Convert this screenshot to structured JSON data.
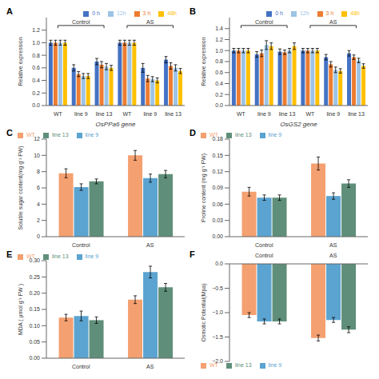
{
  "chart_data": [
    {
      "type": "bar",
      "title": "A",
      "xlabel": "OsPPa6 gene",
      "ylabel": "Relative expression",
      "categories": [
        "WT",
        "line 9",
        "line 13",
        "WT",
        "line 9",
        "line 13"
      ],
      "annotations": [
        "Control",
        "AS"
      ],
      "series": [
        {
          "name": "0 h",
          "color": "#4472C4",
          "values": [
            1.0,
            0.6,
            0.7,
            1.0,
            0.6,
            0.73
          ],
          "errors": [
            0.04,
            0.05,
            0.05,
            0.04,
            0.07,
            0.05
          ]
        },
        {
          "name": "3 h",
          "color": "#ED7D31",
          "values": [
            1.0,
            0.5,
            0.65,
            1.0,
            0.43,
            0.63
          ],
          "errors": [
            0.04,
            0.04,
            0.05,
            0.04,
            0.05,
            0.05
          ]
        },
        {
          "name": "12h",
          "color": "#9DC3E6",
          "values": [
            1.0,
            0.47,
            0.62,
            1.0,
            0.42,
            0.6
          ],
          "errors": [
            0.04,
            0.04,
            0.05,
            0.04,
            0.04,
            0.05
          ]
        },
        {
          "name": "48h",
          "color": "#FFC000",
          "values": [
            1.0,
            0.47,
            0.6,
            1.0,
            0.4,
            0.55
          ],
          "errors": [
            0.04,
            0.04,
            0.04,
            0.04,
            0.04,
            0.04
          ]
        }
      ],
      "ylim": [
        0.0,
        1.4
      ],
      "yticks": [
        {
          "value": 0.0,
          "label": "0.0"
        },
        0.2,
        0.4,
        0.6,
        0.8,
        {
          "value": 1.0,
          "label": "1.0"
        },
        1.2
      ],
      "legend": "upper right"
    },
    {
      "type": "bar",
      "title": "B",
      "xlabel": "OsGS2 gene",
      "ylabel": "Relative expression",
      "categories": [
        "WT",
        "line 9",
        "line 13",
        "WT",
        "line 9",
        "line 13"
      ],
      "annotations": [
        "Control",
        "AS"
      ],
      "series": [
        {
          "name": "0 h",
          "color": "#4472C4",
          "values": [
            1.0,
            0.93,
            0.98,
            1.0,
            0.88,
            0.95
          ],
          "errors": [
            0.04,
            0.05,
            0.05,
            0.04,
            0.05,
            0.05
          ]
        },
        {
          "name": "3 h",
          "color": "#ED7D31",
          "values": [
            1.0,
            0.95,
            0.97,
            1.0,
            0.75,
            0.88
          ],
          "errors": [
            0.04,
            0.06,
            0.04,
            0.04,
            0.05,
            0.04
          ]
        },
        {
          "name": "12h",
          "color": "#9DC3E6",
          "values": [
            1.0,
            1.1,
            1.0,
            1.0,
            0.65,
            0.82
          ],
          "errors": [
            0.04,
            0.08,
            0.04,
            0.04,
            0.05,
            0.04
          ]
        },
        {
          "name": "48h",
          "color": "#FFC000",
          "values": [
            1.0,
            1.08,
            1.08,
            1.0,
            0.63,
            0.72
          ],
          "errors": [
            0.04,
            0.06,
            0.06,
            0.04,
            0.04,
            0.04
          ]
        }
      ],
      "ylim": [
        0.0,
        1.6
      ],
      "yticks": [
        {
          "value": 0.0,
          "label": "0.0"
        },
        0.2,
        0.4,
        0.6,
        0.8,
        {
          "value": 1.0,
          "label": "1.0"
        },
        1.2,
        1.4
      ],
      "legend": "upper right"
    },
    {
      "type": "bar",
      "title": "C",
      "ylabel": "Soluble sugar content(mg g⁻¹ FW)",
      "categories": [
        "Control",
        "AS"
      ],
      "series": [
        {
          "name": "WT",
          "color": "#F4A070",
          "values": [
            7.8,
            10.0
          ],
          "errors": [
            0.55,
            0.6
          ]
        },
        {
          "name": "line 9",
          "color": "#5BA3D0",
          "values": [
            6.1,
            7.2
          ],
          "errors": [
            0.4,
            0.5
          ]
        },
        {
          "name": "line 13",
          "color": "#5F8F7A",
          "values": [
            6.8,
            7.7
          ],
          "errors": [
            0.3,
            0.45
          ]
        }
      ],
      "ylim": [
        0,
        12
      ],
      "yticks": [
        0,
        2,
        4,
        6,
        8,
        10,
        12
      ],
      "legend": "upper left"
    },
    {
      "type": "bar",
      "title": "D",
      "ylabel": "Proline content (mg g⁻¹ FW)",
      "categories": [
        "Control",
        "AS"
      ],
      "series": [
        {
          "name": "WT",
          "color": "#F4A070",
          "values": [
            0.083,
            0.135
          ],
          "errors": [
            0.008,
            0.012
          ]
        },
        {
          "name": "line 9",
          "color": "#5BA3D0",
          "values": [
            0.072,
            0.075
          ],
          "errors": [
            0.005,
            0.006
          ]
        },
        {
          "name": "line 13",
          "color": "#5F8F7A",
          "values": [
            0.072,
            0.098
          ],
          "errors": [
            0.005,
            0.007
          ]
        }
      ],
      "ylim": [
        0.0,
        0.18
      ],
      "yticks": [
        {
          "value": 0.0,
          "label": "0.00"
        },
        0.03,
        0.06,
        0.09,
        0.12,
        0.15,
        0.18
      ],
      "legend": "upper left"
    },
    {
      "type": "bar",
      "title": "E",
      "ylabel": "MDA ( μmol g⁻¹ FW )",
      "categories": [
        "Control",
        "AS"
      ],
      "series": [
        {
          "name": "WT",
          "color": "#F4A070",
          "values": [
            0.125,
            0.18
          ],
          "errors": [
            0.01,
            0.012
          ]
        },
        {
          "name": "line 9",
          "color": "#5BA3D0",
          "values": [
            0.13,
            0.265
          ],
          "errors": [
            0.015,
            0.018
          ]
        },
        {
          "name": "line 13",
          "color": "#5F8F7A",
          "values": [
            0.117,
            0.218
          ],
          "errors": [
            0.01,
            0.012
          ]
        }
      ],
      "ylim": [
        0.0,
        0.3
      ],
      "yticks": [
        {
          "value": 0.0,
          "label": "0.00"
        },
        0.05,
        {
          "value": 0.1,
          "label": "0.10"
        },
        0.15,
        {
          "value": 0.2,
          "label": "0.20"
        },
        0.25,
        {
          "value": 0.3,
          "label": "0.30"
        }
      ],
      "legend": "upper left"
    },
    {
      "type": "bar",
      "title": "F",
      "ylabel": "Osmotic Potential(Mpa)",
      "categories": [
        "Control",
        "AS"
      ],
      "series": [
        {
          "name": "WT",
          "color": "#F4A070",
          "values": [
            -1.05,
            -1.52
          ],
          "errors": [
            0.05,
            0.06
          ]
        },
        {
          "name": "line 9",
          "color": "#5BA3D0",
          "values": [
            -1.18,
            -1.15
          ],
          "errors": [
            0.05,
            0.05
          ]
        },
        {
          "name": "line 13",
          "color": "#5F8F7A",
          "values": [
            -1.18,
            -1.35
          ],
          "errors": [
            0.05,
            0.06
          ]
        }
      ],
      "ylim": [
        -2,
        0
      ],
      "yticks": [
        {
          "value": -2.0,
          "label": "−2.0"
        },
        {
          "value": -1.5,
          "label": "−1.5"
        },
        {
          "value": -1.0,
          "label": "−1.0"
        },
        {
          "value": -0.5,
          "label": "−0.5"
        },
        {
          "value": 0,
          "label": "0.0"
        }
      ],
      "legend": "lower left"
    }
  ]
}
